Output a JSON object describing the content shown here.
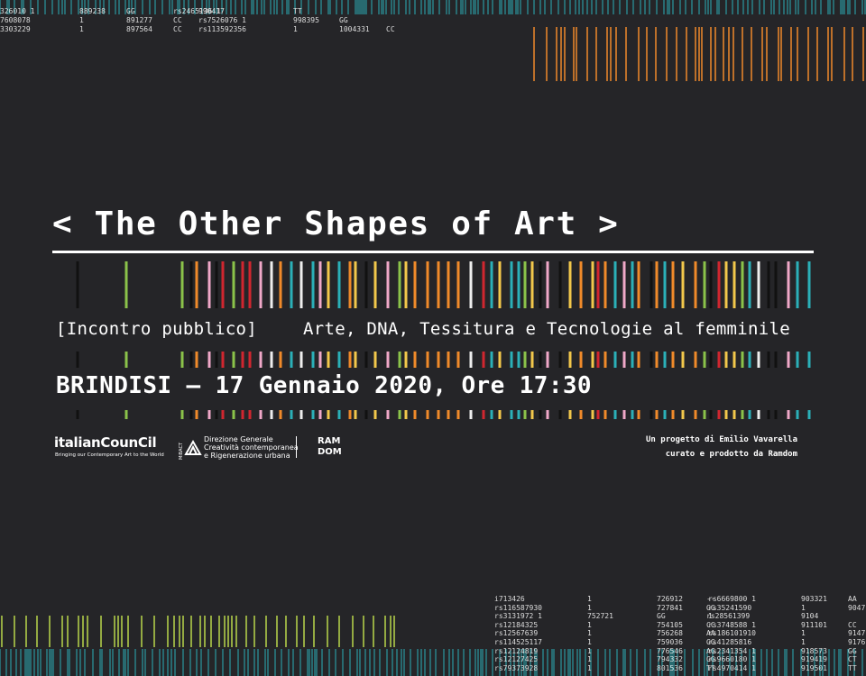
{
  "header": {
    "title": "< The Other Shapes of Art >"
  },
  "event": {
    "kind": "[Incontro pubblico]",
    "topic": "Arte, DNA, Tessitura e Tecnologie al femminile",
    "when": "BRINDISI — 17 Gennaio 2020, Ore 17:30"
  },
  "logos": {
    "italian_council": {
      "name": "italianCounCil",
      "tagline": "Bringing our Contemporary Art to the World"
    },
    "mibact": {
      "mark": "MiBACT",
      "lines": [
        "Direzione Generale",
        "Creatività contemporanea",
        "e Rigenerazione urbana"
      ]
    },
    "ramdom": {
      "lines": [
        "RAM",
        "DOM"
      ]
    }
  },
  "credits": [
    "Un progetto di Emilio Vavarella",
    "curato e prodotto da Ramdom"
  ],
  "dna_top": [
    [
      "326010 1",
      "889238",
      "GG",
      "rs2465136 1",
      "990417",
      "TT"
    ],
    [
      "7608078",
      "1",
      "891277",
      "CC",
      "rs7526076 1",
      "998395",
      "GG"
    ],
    [
      "3303229",
      "1",
      "897564",
      "CC",
      "rs113592356",
      "1",
      "1004331",
      "CC"
    ]
  ],
  "dna_bottom": [
    [
      "i713426",
      "1",
      "726912",
      "--",
      "rs6669800 1",
      "903321",
      "AA"
    ],
    [
      "rs116587930",
      "1",
      "727841",
      "GG",
      "rs35241590",
      "1",
      "9047"
    ],
    [
      "rs3131972 1",
      "752721",
      "GG",
      "rs28561399",
      "1",
      "9104"
    ],
    [
      "rs12184325",
      "1",
      "754105",
      "CC",
      "rs3748588 1",
      "911101",
      "CC"
    ],
    [
      "rs12567639",
      "1",
      "756268",
      "AA",
      "rs186101910",
      "1",
      "9147"
    ],
    [
      "rs114525117",
      "1",
      "759036",
      "GG",
      "rs41285816",
      "1",
      "9176"
    ],
    [
      "rs12124819",
      "1",
      "776546",
      "AG",
      "rs2341354 1",
      "918573",
      "GG"
    ],
    [
      "rs12127425",
      "1",
      "794332",
      "GG",
      "rs9660180 1",
      "919419",
      "CT"
    ],
    [
      "rs79373928",
      "1",
      "801536",
      "TT",
      "rs4970414 1",
      "919501",
      "TT"
    ]
  ]
}
